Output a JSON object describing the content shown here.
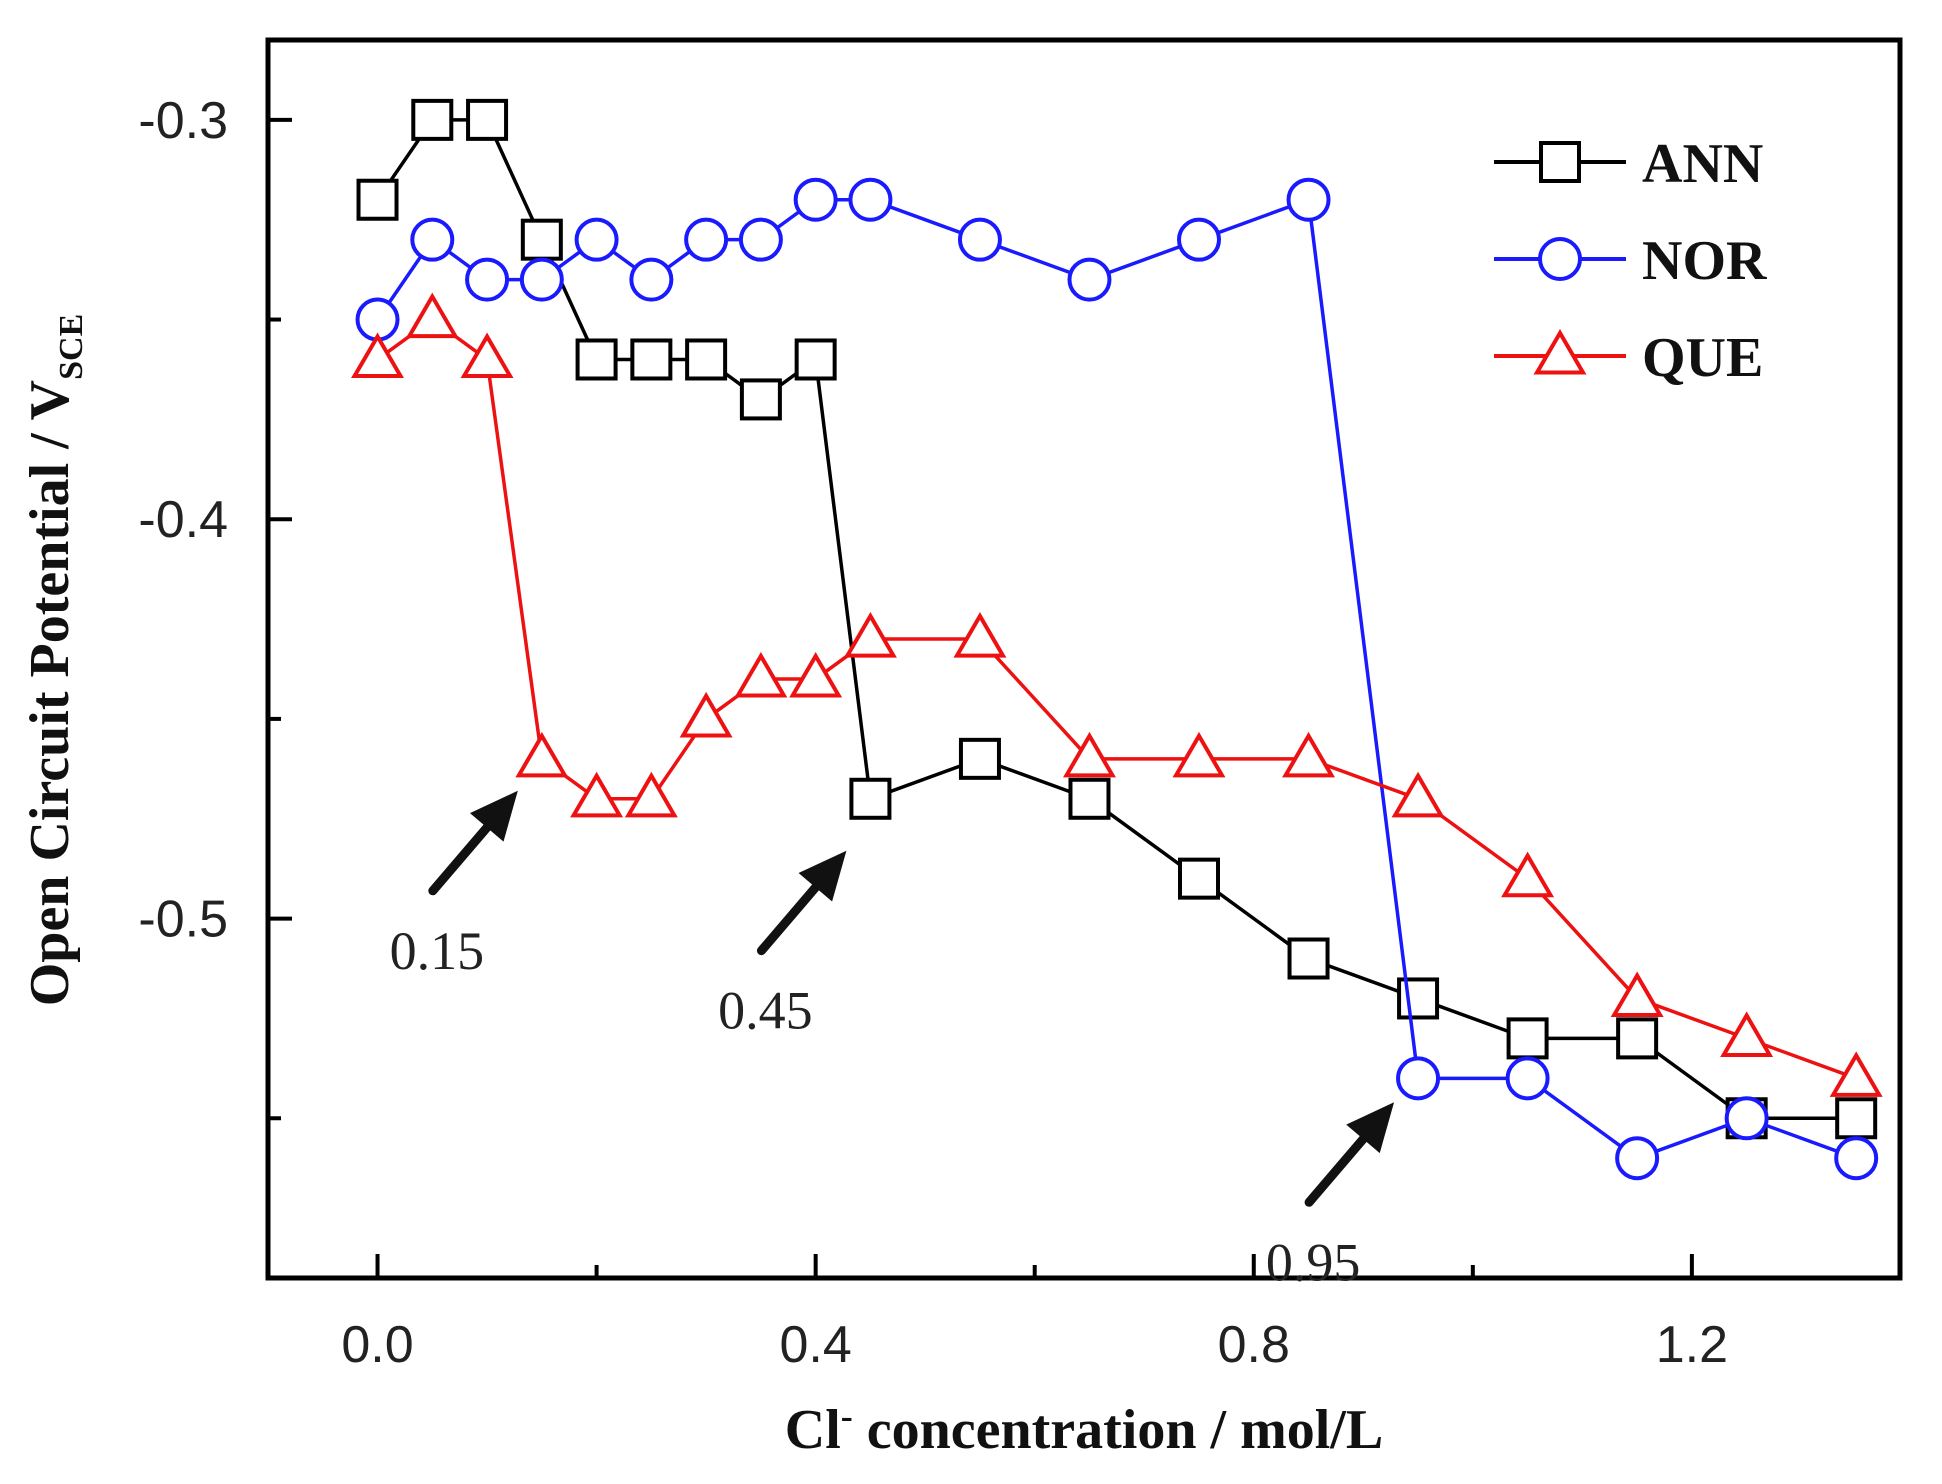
{
  "chart_data": {
    "type": "line",
    "title": "",
    "xlabel": {
      "main": "Cl",
      "sup": "-",
      "rest": " concentration / mol/L"
    },
    "ylabel": {
      "main": "Open Circuit Potential / V",
      "sub": "SCE"
    },
    "xlim": [
      -0.1,
      1.39
    ],
    "ylim": [
      -0.59,
      -0.28
    ],
    "xticks": [
      0.0,
      0.4,
      0.8,
      1.2
    ],
    "xtick_labels": [
      "0.0",
      "0.4",
      "0.8",
      "1.2"
    ],
    "yticks": [
      -0.3,
      -0.4,
      -0.5
    ],
    "ytick_labels": [
      "-0.3",
      "-0.4",
      "-0.5"
    ],
    "x": [
      0.0,
      0.05,
      0.1,
      0.15,
      0.2,
      0.25,
      0.3,
      0.35,
      0.4,
      0.45,
      0.55,
      0.65,
      0.75,
      0.85,
      0.95,
      1.05,
      1.15,
      1.25,
      1.35
    ],
    "series": [
      {
        "name": "ANN",
        "color": "#000000",
        "marker": "square",
        "values": [
          -0.32,
          -0.3,
          -0.3,
          -0.33,
          -0.36,
          -0.36,
          -0.36,
          -0.37,
          -0.36,
          -0.47,
          -0.46,
          -0.47,
          -0.49,
          -0.51,
          -0.52,
          -0.53,
          -0.53,
          -0.55,
          -0.55
        ]
      },
      {
        "name": "NOR",
        "color": "#1a1aff",
        "marker": "circle",
        "values": [
          -0.35,
          -0.33,
          -0.34,
          -0.34,
          -0.33,
          -0.34,
          -0.33,
          -0.33,
          -0.32,
          -0.32,
          -0.33,
          -0.34,
          -0.33,
          -0.32,
          -0.54,
          -0.54,
          -0.56,
          -0.55,
          -0.56
        ]
      },
      {
        "name": "QUE",
        "color": "#ee1111",
        "marker": "triangle",
        "values": [
          -0.36,
          -0.35,
          -0.36,
          -0.46,
          -0.47,
          -0.47,
          -0.45,
          -0.44,
          -0.44,
          -0.43,
          -0.43,
          -0.46,
          -0.46,
          -0.46,
          -0.47,
          -0.49,
          -0.52,
          -0.53,
          -0.54
        ]
      }
    ],
    "legend": {
      "position": "top-right",
      "entries": [
        "ANN",
        "NOR",
        "QUE"
      ]
    },
    "grid": false,
    "annotations": [
      {
        "text": "0.15",
        "arrow_to": [
          0.15,
          -0.467
        ]
      },
      {
        "text": "0.45",
        "arrow_to": [
          0.45,
          -0.482
        ]
      },
      {
        "text": "0.95",
        "arrow_to": [
          0.95,
          -0.545
        ]
      }
    ]
  }
}
